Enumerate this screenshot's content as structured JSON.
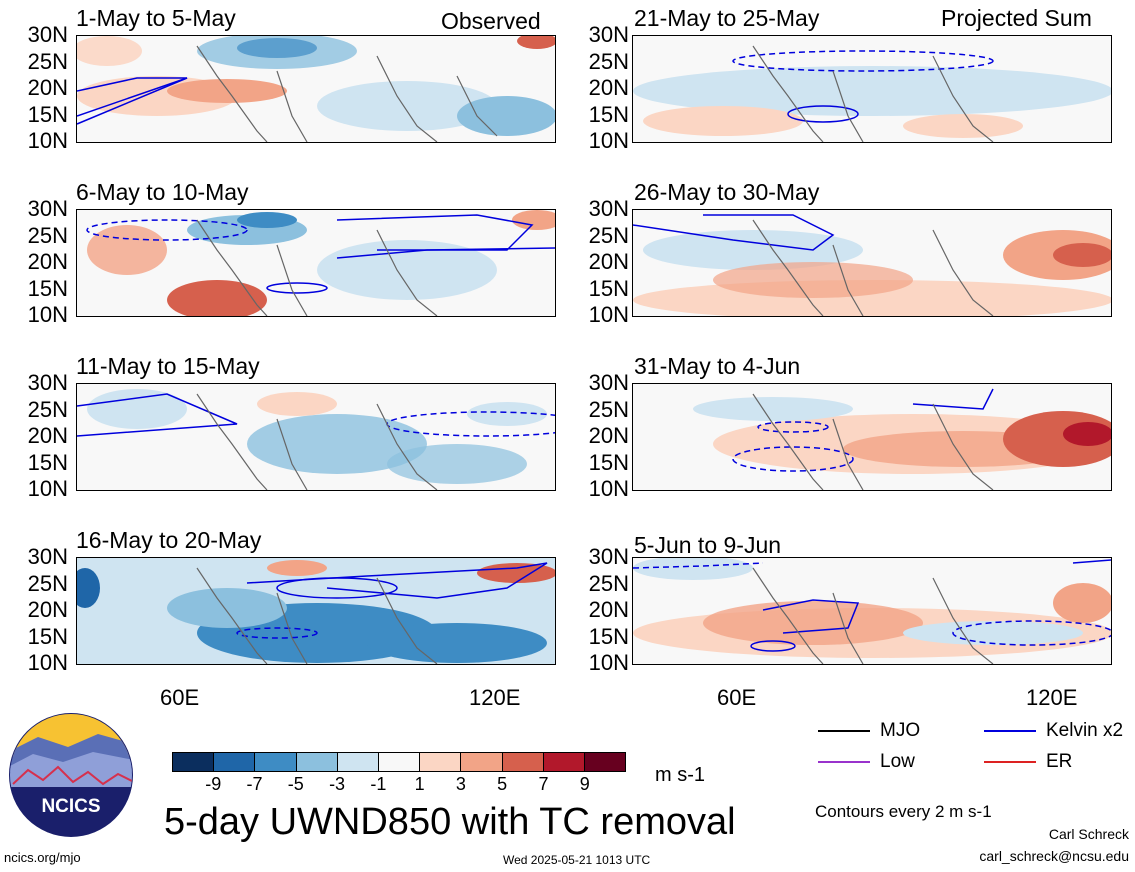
{
  "panels": [
    {
      "title": "1-May to 5-May",
      "tag": "Observed"
    },
    {
      "title": "21-May to 25-May",
      "tag": "Projected Sum"
    },
    {
      "title": "6-May to 10-May",
      "tag": ""
    },
    {
      "title": "26-May to 30-May",
      "tag": ""
    },
    {
      "title": "11-May to 15-May",
      "tag": ""
    },
    {
      "title": "31-May to 4-Jun",
      "tag": ""
    },
    {
      "title": "16-May to 20-May",
      "tag": ""
    },
    {
      "title": "5-Jun to 9-Jun",
      "tag": ""
    }
  ],
  "lat_labels": [
    "30N",
    "25N",
    "20N",
    "15N",
    "10N"
  ],
  "lon_labels": [
    "60E",
    "120E"
  ],
  "legend": {
    "mjo": "MJO",
    "kelvin": "Kelvin x2",
    "low": "Low",
    "er": "ER",
    "colors": {
      "mjo": "#000000",
      "kelvin": "#0000dd",
      "low": "#9933cc",
      "er": "#dd2222"
    }
  },
  "colorbar": {
    "ticks": [
      "-9",
      "-7",
      "-5",
      "-3",
      "-1",
      "1",
      "3",
      "5",
      "7",
      "9"
    ],
    "colors": [
      "#0b2e5e",
      "#1f66a8",
      "#3e8cc4",
      "#8cc0de",
      "#cfe4f1",
      "#f8f8f8",
      "#fbd6c4",
      "#f2a487",
      "#d6604d",
      "#b2182b",
      "#67001f"
    ],
    "units": "m s-1"
  },
  "contour_note": "Contours every 2 m s-1",
  "title": "5-day UWND850 with TC removal",
  "logo_text": "NCICS",
  "url": "ncics.org/mjo",
  "timestamp": "Wed 2025-05-21 1013 UTC",
  "author": "Carl Schreck",
  "email": "carl_schreck@ncsu.edu",
  "chart_data": [
    {
      "type": "heatmap",
      "title": "1-May to 5-May",
      "subtitle": "Observed",
      "variable": "UWND850",
      "units": "m s-1",
      "ylim": [
        "10N",
        "30N"
      ],
      "xticks": [
        "60E",
        "120E"
      ],
      "overlay_contours": [
        "Kelvin x2"
      ]
    },
    {
      "type": "heatmap",
      "title": "21-May to 25-May",
      "subtitle": "Projected Sum",
      "variable": "UWND850",
      "units": "m s-1",
      "ylim": [
        "10N",
        "30N"
      ],
      "xticks": [
        "60E",
        "120E"
      ],
      "overlay_contours": [
        "Kelvin x2"
      ]
    },
    {
      "type": "heatmap",
      "title": "6-May to 10-May",
      "variable": "UWND850",
      "units": "m s-1",
      "ylim": [
        "10N",
        "30N"
      ],
      "xticks": [
        "60E",
        "120E"
      ],
      "overlay_contours": [
        "Kelvin x2"
      ]
    },
    {
      "type": "heatmap",
      "title": "26-May to 30-May",
      "variable": "UWND850",
      "units": "m s-1",
      "ylim": [
        "10N",
        "30N"
      ],
      "xticks": [
        "60E",
        "120E"
      ],
      "overlay_contours": [
        "Kelvin x2"
      ]
    },
    {
      "type": "heatmap",
      "title": "11-May to 15-May",
      "variable": "UWND850",
      "units": "m s-1",
      "ylim": [
        "10N",
        "30N"
      ],
      "xticks": [
        "60E",
        "120E"
      ],
      "overlay_contours": [
        "Kelvin x2"
      ]
    },
    {
      "type": "heatmap",
      "title": "31-May to 4-Jun",
      "variable": "UWND850",
      "units": "m s-1",
      "ylim": [
        "10N",
        "30N"
      ],
      "xticks": [
        "60E",
        "120E"
      ],
      "overlay_contours": [
        "Kelvin x2"
      ]
    },
    {
      "type": "heatmap",
      "title": "16-May to 20-May",
      "variable": "UWND850",
      "units": "m s-1",
      "ylim": [
        "10N",
        "30N"
      ],
      "xticks": [
        "60E",
        "120E"
      ],
      "overlay_contours": [
        "Kelvin x2"
      ]
    },
    {
      "type": "heatmap",
      "title": "5-Jun to 9-Jun",
      "variable": "UWND850",
      "units": "m s-1",
      "ylim": [
        "10N",
        "30N"
      ],
      "xticks": [
        "60E",
        "120E"
      ],
      "overlay_contours": [
        "Kelvin x2"
      ]
    }
  ]
}
